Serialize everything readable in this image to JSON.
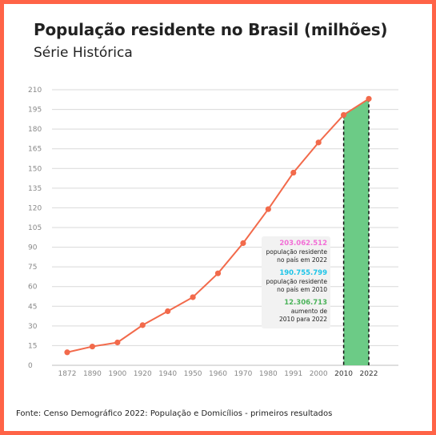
{
  "title": "População residente no Brasil (milhões)",
  "subtitle": "Série Histórica",
  "source": "Fonte: Censo Demográfico 2022: População e Domicílios - primeiros resultados",
  "colors": {
    "line": "#f26a4b",
    "highlight_area": "#6ccb86",
    "border": "#ff6347",
    "annotation_1": "#f26ed6",
    "annotation_2": "#1cc4e8",
    "annotation_3": "#4bb35a"
  },
  "annotations": [
    {
      "value": "203.062.512",
      "text_1": "população residente",
      "text_2": "no país em 2022"
    },
    {
      "value": "190.755.799",
      "text_1": "população residente",
      "text_2": "no país em 2010"
    },
    {
      "value": "12.306.713",
      "text_1": "aumento de",
      "text_2": "2010 para 2022"
    }
  ],
  "chart_data": {
    "type": "line",
    "title": "População residente no Brasil (milhões)",
    "subtitle": "Série Histórica",
    "categories": [
      "1872",
      "1890",
      "1900",
      "1920",
      "1940",
      "1950",
      "1960",
      "1970",
      "1980",
      "1991",
      "2000",
      "2010",
      "2022"
    ],
    "series": [
      {
        "values": [
          9.9,
          14.3,
          17.4,
          30.6,
          41.2,
          51.9,
          70.1,
          93.1,
          119.0,
          146.8,
          169.8,
          190.8,
          203.1
        ]
      }
    ],
    "highlight_range": [
      "2010",
      "2022"
    ],
    "y_ticks": [
      0,
      15,
      30,
      45,
      60,
      75,
      90,
      105,
      120,
      135,
      150,
      165,
      180,
      195,
      210
    ],
    "ylim": [
      0,
      210
    ],
    "grid": true,
    "legend": "none"
  }
}
